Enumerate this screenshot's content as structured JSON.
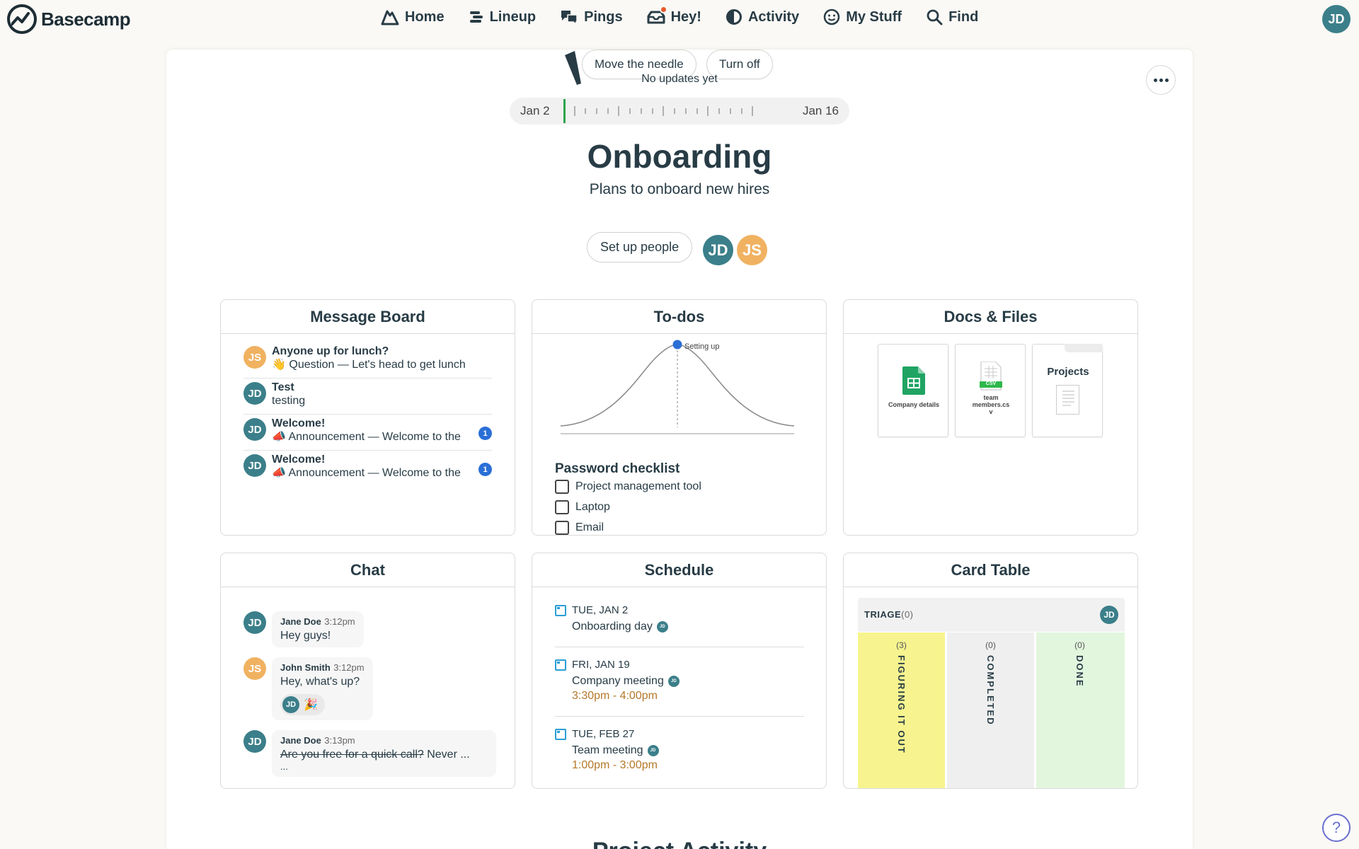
{
  "app": {
    "name": "Basecamp"
  },
  "nav": {
    "home": "Home",
    "lineup": "Lineup",
    "pings": "Pings",
    "hey": "Hey!",
    "activity": "Activity",
    "my_stuff": "My Stuff",
    "find": "Find"
  },
  "user": {
    "initials": "JD"
  },
  "project": {
    "move_needle": "Move the needle",
    "turn_off": "Turn off",
    "no_updates": "No updates yet",
    "timeline_start": "Jan 2",
    "timeline_end": "Jan 16",
    "title": "Onboarding",
    "description": "Plans to onboard new hires",
    "setup_people": "Set up people",
    "people": [
      {
        "initials": "JD"
      },
      {
        "initials": "JS"
      }
    ]
  },
  "message_board": {
    "title": "Message Board",
    "items": [
      {
        "initials": "JS",
        "title": "Anyone up for lunch?",
        "excerpt": "👋 Question — Let's head to get lunch",
        "badge": ""
      },
      {
        "initials": "JD",
        "title": "Test",
        "excerpt": "testing",
        "badge": ""
      },
      {
        "initials": "JD",
        "title": "Welcome!",
        "excerpt": "📣 Announcement — Welcome to the",
        "badge": "1"
      },
      {
        "initials": "JD",
        "title": "Welcome!",
        "excerpt": "📣 Announcement — Welcome to the",
        "badge": "1"
      }
    ]
  },
  "todos": {
    "title": "To-dos",
    "hill_label": "Setting up",
    "checklist_title": "Password checklist",
    "items": [
      "Project management tool",
      "Laptop",
      "Email"
    ]
  },
  "docs": {
    "title": "Docs & Files",
    "files": [
      {
        "label": "Company details"
      },
      {
        "label": "team members.cs v",
        "badge": "CSV"
      }
    ],
    "folder": {
      "name": "Projects"
    }
  },
  "chat": {
    "title": "Chat",
    "messages": [
      {
        "initials": "JD",
        "name": "Jane Doe",
        "time": "3:12pm",
        "text": "Hey guys!"
      },
      {
        "initials": "JS",
        "name": "John Smith",
        "time": "3:12pm",
        "text": "Hey, what's up?",
        "reaction_initials": "JD",
        "reaction_emoji": "🎉"
      },
      {
        "initials": "JD",
        "name": "Jane Doe",
        "time": "3:13pm",
        "text_struck": "Are you free for a quick call?",
        "text_rest": " Never ...",
        "text_more": "..."
      }
    ]
  },
  "schedule": {
    "title": "Schedule",
    "events": [
      {
        "date": "TUE, JAN 2",
        "title": "Onboarding day",
        "initials": "JD",
        "time": ""
      },
      {
        "date": "FRI, JAN 19",
        "title": "Company meeting",
        "initials": "JD",
        "time": "3:30pm - 4:00pm"
      },
      {
        "date": "TUE, FEB 27",
        "title": "Team meeting",
        "initials": "JD",
        "time": "1:00pm - 3:00pm"
      }
    ]
  },
  "card_table": {
    "title": "Card Table",
    "triage_label": "TRIAGE",
    "triage_count": "(0)",
    "triage_initials": "JD",
    "columns": [
      {
        "name": "FIGURING IT OUT",
        "count": "(3)",
        "color": "#f7f48f"
      },
      {
        "name": "COMPLETED",
        "count": "(0)",
        "color": "#efefef"
      },
      {
        "name": "DONE",
        "count": "(0)",
        "color": "#e2f6de"
      }
    ]
  },
  "activity": {
    "title": "Project Activity"
  },
  "help": {
    "label": "?"
  }
}
